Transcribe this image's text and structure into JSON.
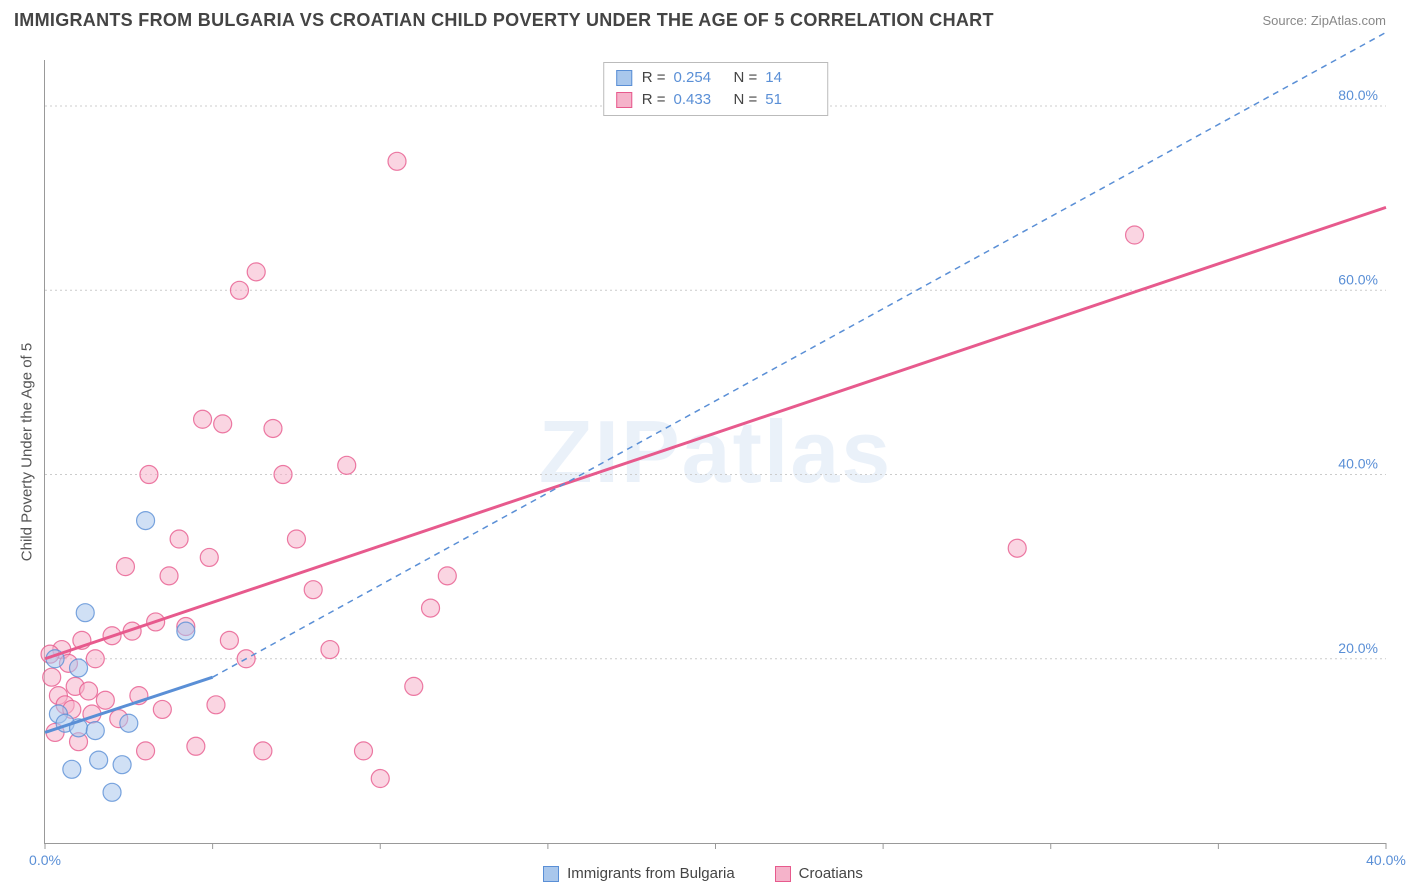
{
  "header": {
    "title": "IMMIGRANTS FROM BULGARIA VS CROATIAN CHILD POVERTY UNDER THE AGE OF 5 CORRELATION CHART",
    "source": "Source: ZipAtlas.com"
  },
  "watermark": "ZIPatlas",
  "chart": {
    "type": "scatter",
    "ylabel": "Child Poverty Under the Age of 5",
    "xlim": [
      0,
      40
    ],
    "ylim": [
      0,
      85
    ],
    "xticks": [
      0,
      40
    ],
    "xtick_labels": [
      "0.0%",
      "40.0%"
    ],
    "xtick_minor": [
      5,
      10,
      15,
      20,
      25,
      30,
      35
    ],
    "yticks": [
      20,
      40,
      60,
      80
    ],
    "ytick_labels": [
      "20.0%",
      "40.0%",
      "60.0%",
      "80.0%"
    ],
    "grid_color": "#cccccc",
    "axis_color": "#999999",
    "tick_label_color": "#5a8fd6",
    "background": "#ffffff",
    "marker_radius": 9,
    "marker_opacity": 0.55,
    "series": [
      {
        "name": "Immigrants from Bulgaria",
        "color": "#5a8fd6",
        "fill": "#a9c7ec",
        "R": "0.254",
        "N": "14",
        "regression": {
          "x1": 0,
          "y1": 12,
          "x2": 5,
          "y2": 18,
          "dashed": false,
          "extend_x2": 40,
          "extend_y2": 88,
          "extend_dashed": true
        },
        "points": [
          [
            0.3,
            20
          ],
          [
            0.4,
            14
          ],
          [
            0.6,
            13
          ],
          [
            0.8,
            8
          ],
          [
            1.0,
            12.5
          ],
          [
            1.0,
            19
          ],
          [
            1.2,
            25
          ],
          [
            1.5,
            12.2
          ],
          [
            1.6,
            9
          ],
          [
            2.0,
            5.5
          ],
          [
            2.3,
            8.5
          ],
          [
            2.5,
            13
          ],
          [
            3.0,
            35
          ],
          [
            4.2,
            23
          ]
        ]
      },
      {
        "name": "Croatians",
        "color": "#e75a8d",
        "fill": "#f5b3ca",
        "R": "0.433",
        "N": "51",
        "regression": {
          "x1": 0,
          "y1": 20,
          "x2": 40,
          "y2": 69,
          "dashed": false
        },
        "points": [
          [
            0.2,
            18
          ],
          [
            0.3,
            12
          ],
          [
            0.4,
            16
          ],
          [
            0.5,
            21
          ],
          [
            0.6,
            15
          ],
          [
            0.7,
            19.5
          ],
          [
            0.8,
            14.5
          ],
          [
            0.9,
            17
          ],
          [
            1.0,
            11
          ],
          [
            1.1,
            22
          ],
          [
            1.3,
            16.5
          ],
          [
            1.4,
            14
          ],
          [
            1.5,
            20
          ],
          [
            1.8,
            15.5
          ],
          [
            2.0,
            22.5
          ],
          [
            2.2,
            13.5
          ],
          [
            2.4,
            30
          ],
          [
            2.6,
            23
          ],
          [
            2.8,
            16
          ],
          [
            3.0,
            10
          ],
          [
            3.1,
            40
          ],
          [
            3.3,
            24
          ],
          [
            3.5,
            14.5
          ],
          [
            3.7,
            29
          ],
          [
            4.0,
            33
          ],
          [
            4.2,
            23.5
          ],
          [
            4.5,
            10.5
          ],
          [
            4.7,
            46
          ],
          [
            4.9,
            31
          ],
          [
            5.1,
            15
          ],
          [
            5.3,
            45.5
          ],
          [
            5.5,
            22
          ],
          [
            5.8,
            60
          ],
          [
            6.0,
            20
          ],
          [
            6.3,
            62
          ],
          [
            6.5,
            10
          ],
          [
            6.8,
            45
          ],
          [
            7.1,
            40
          ],
          [
            7.5,
            33
          ],
          [
            8.0,
            27.5
          ],
          [
            8.5,
            21
          ],
          [
            9.0,
            41
          ],
          [
            9.5,
            10
          ],
          [
            10.0,
            7
          ],
          [
            10.5,
            74
          ],
          [
            11.0,
            17
          ],
          [
            11.5,
            25.5
          ],
          [
            12.0,
            29
          ],
          [
            29.0,
            32
          ],
          [
            32.5,
            66
          ],
          [
            0.15,
            20.5
          ]
        ]
      }
    ]
  },
  "legend": {
    "series1": "Immigrants from Bulgaria",
    "series2": "Croatians"
  }
}
